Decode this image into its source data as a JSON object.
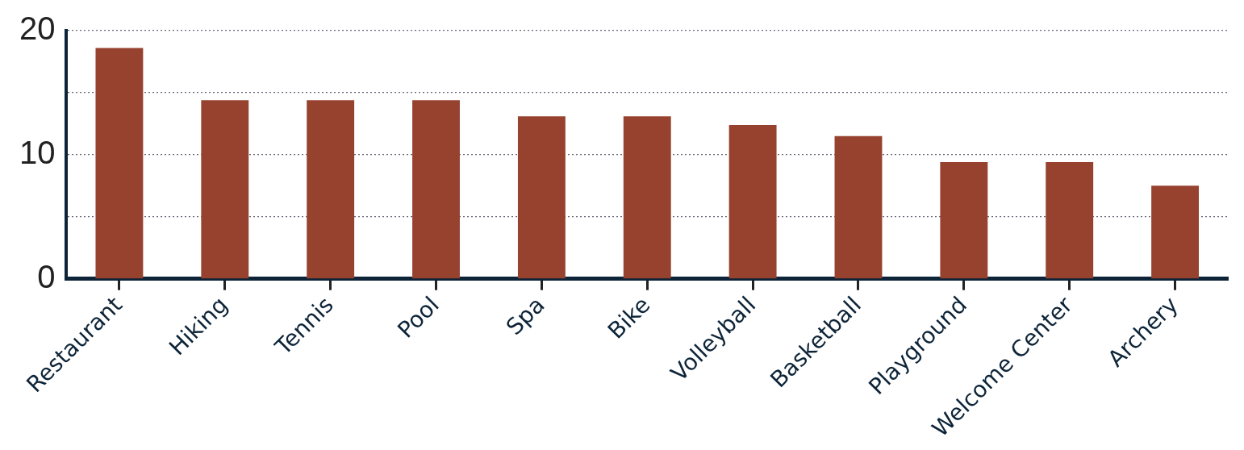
{
  "chart_data": {
    "type": "bar",
    "categories": [
      "Restaurant",
      "Hiking",
      "Tennis",
      "Pool",
      "Spa",
      "Bike",
      "Volleyball",
      "Basketball",
      "Playground",
      "Welcome Center",
      "Archery"
    ],
    "values": [
      18.6,
      14.4,
      14.4,
      14.4,
      13.1,
      13.1,
      12.4,
      11.5,
      9.4,
      9.4,
      7.5
    ],
    "color": "#97422f",
    "ylim": [
      0,
      20
    ],
    "yticks": [
      0,
      {
        "value": 5,
        "label": null
      },
      10,
      {
        "value": 15,
        "label": null
      },
      20
    ],
    "grid": "y",
    "legend": false
  }
}
